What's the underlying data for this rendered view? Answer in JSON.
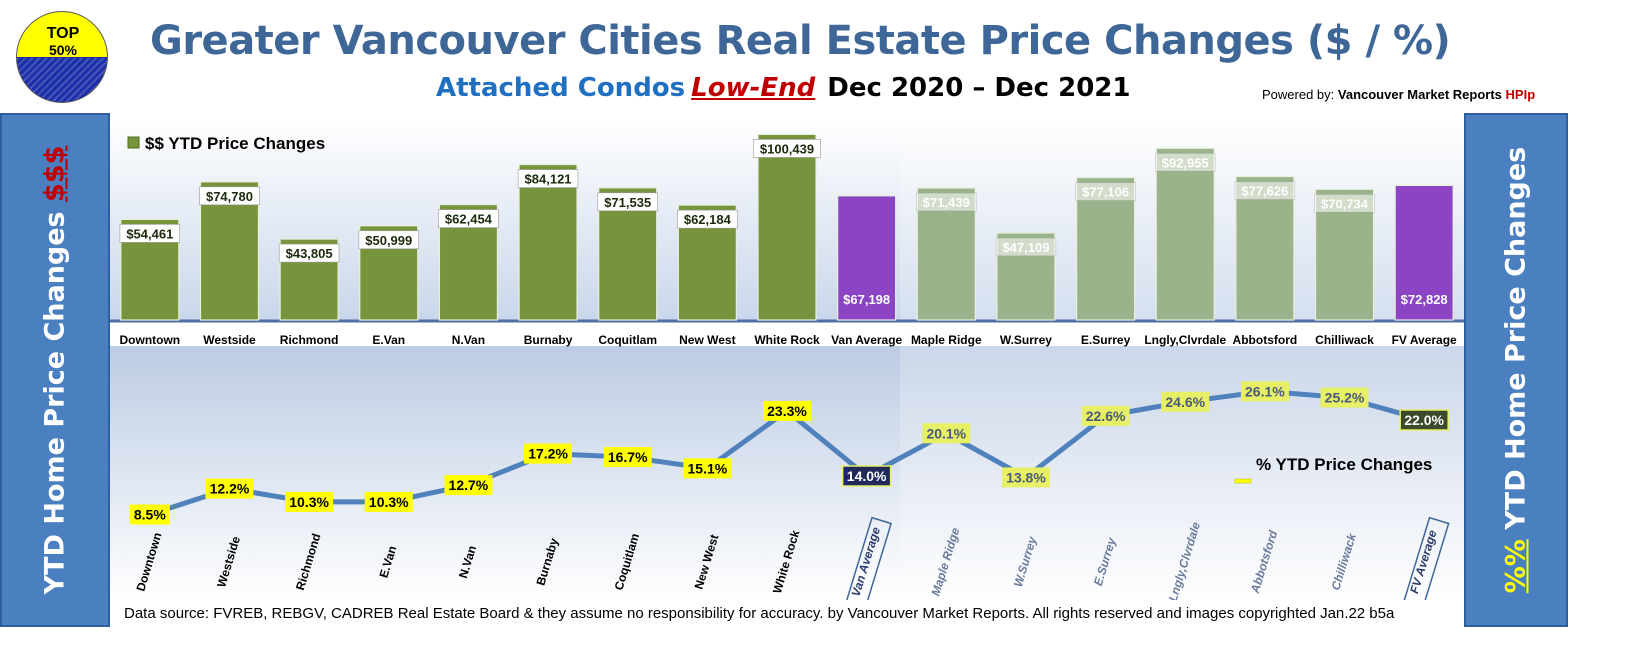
{
  "badge": {
    "line1": "TOP",
    "line2": "50%"
  },
  "header": {
    "title": "Greater Vancouver Cities Real Estate Price Changes ($ / %)",
    "subtitle_part1": "Attached Condos",
    "subtitle_part2": "Low-End",
    "subtitle_part3": "Dec 2020  –  Dec 2021",
    "powered_prefix": "Powered by:",
    "powered_brand": "Vancouver Market Reports",
    "powered_suffix": "HPIp"
  },
  "side_left": {
    "text": "YTD Home Price Changes ",
    "accent": "$$$"
  },
  "side_right": {
    "accent": "%%",
    "text": " YTD Home Price  Changes"
  },
  "footer": {
    "text": "Data source: FVREB, REBGV, CADREB Real Estate Board & they assume no responsibility for accuracy. by Vancouver Market Reports. All rights reserved and  images copyrighted Jan.22 b5a"
  },
  "colors": {
    "van_bar": "#77933c",
    "fv_bar": "#9bb38a",
    "avg_bar": "#8a44c4",
    "line": "#4f81bd",
    "label_bg": "#ffff00",
    "fv_label_bg": "#e6ef66",
    "avg_label_bg": "#1f2a5a"
  },
  "chart_data": [
    {
      "type": "bar",
      "legend": "$$ YTD Price Changes",
      "categories": [
        "Downtown",
        "Westside",
        "Richmond",
        "E.Van",
        "N.Van",
        "Burnaby",
        "Coquitlam",
        "New West",
        "White Rock",
        "Van Average",
        "Maple Ridge",
        "W.Surrey",
        "E.Surrey",
        "Lngly,Clvrdale",
        "Abbotsford",
        "Chilliwack",
        "FV Average"
      ],
      "values": [
        54461,
        74780,
        43805,
        50999,
        62454,
        84121,
        71535,
        62184,
        100439,
        67198,
        71439,
        47109,
        77106,
        92955,
        77626,
        70734,
        72828
      ],
      "labels": [
        "$54,461",
        "$74,780",
        "$43,805",
        "$50,999",
        "$62,454",
        "$84,121",
        "$71,535",
        "$62,184",
        "$100,439",
        "$67,198",
        "$71,439",
        "$47,109",
        "$77,106",
        "$92,955",
        "$77,626",
        "$70,734",
        "$72,828"
      ],
      "ylim": [
        0,
        105000
      ]
    },
    {
      "type": "line",
      "legend": "% YTD Price Changes",
      "categories": [
        "Downtown",
        "Westside",
        "Richmond",
        "E.Van",
        "N.Van",
        "Burnaby",
        "Coquitlam",
        "New West",
        "White Rock",
        "Van Average",
        "Maple Ridge",
        "W.Surrey",
        "E.Surrey",
        "Lngly,Clvrdale",
        "Abbotsford",
        "Chilliwack",
        "FV Average"
      ],
      "values": [
        8.5,
        12.2,
        10.3,
        10.3,
        12.7,
        17.2,
        16.7,
        15.1,
        23.3,
        14.0,
        20.1,
        13.8,
        22.6,
        24.6,
        26.1,
        25.2,
        22.0
      ],
      "labels": [
        "8.5%",
        "12.2%",
        "10.3%",
        "10.3%",
        "12.7%",
        "17.2%",
        "16.7%",
        "15.1%",
        "23.3%",
        "14.0%",
        "20.1%",
        "13.8%",
        "22.6%",
        "24.6%",
        "26.1%",
        "25.2%",
        "22.0%"
      ],
      "ylim": [
        0,
        30
      ]
    }
  ]
}
